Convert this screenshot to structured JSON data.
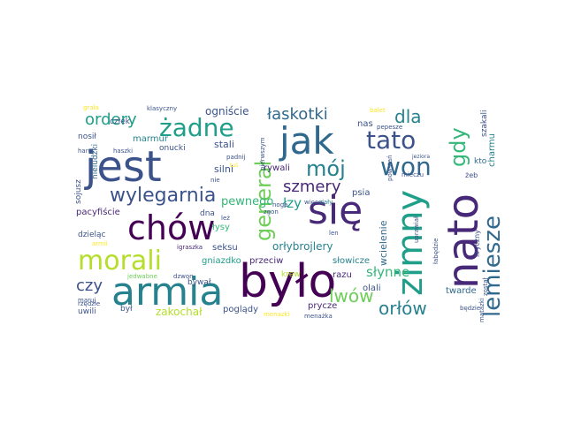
{
  "words": {
    "jest": "jest",
    "bylo": "było",
    "nato": "nato",
    "armia": "armia",
    "sie": "się",
    "jak": "jak",
    "chow": "chów",
    "zimny": "zimny",
    "tato": "tato",
    "won": "won",
    "morali": "morali",
    "lemiesze": "lemiesze",
    "zadne": "żadne",
    "general": "generał",
    "gdy": "gdy",
    "moj": "mój",
    "wylegarnia": "wylegarnia",
    "szmery": "szmery",
    "dla": "dla",
    "ordery": "ordery",
    "laskotki": "łaskotki",
    "lwow": "lwów",
    "orlow": "orłów",
    "czy": "czy",
    "slynne": "słynne",
    "lzy": "łzy",
    "pewnego": "pewnego",
    "zakochal": "zakochał",
    "ogniscie": "ogniście",
    "orlybrojlery": "orłybrojlery",
    "wcielenie": "wcielenie",
    "marmur": "marmur",
    "stali": "stali",
    "silni": "silni",
    "rywali": "rywali",
    "pogladyi": "poglądy",
    "twarde": "twarde",
    "olali": "olali",
    "razu": "razu",
    "przeciw": "przeciw",
    "slowicze": "słowicze",
    "gniazdko": "gniazdko",
    "seksu": "seksu",
    "lysy": "łysy",
    "dna": "dna",
    "pacyfiscie": "pacyfiście",
    "dzielac": "dzieląc",
    "uwili": "uwili",
    "byl": "był",
    "prycze": "prycze",
    "krew": "krew",
    "psia": "psia",
    "nas": "nas",
    "kto": "kto",
    "charmu": "charmu",
    "szakali": "szakali",
    "karni": "karni",
    "czlek": "człek",
    "onucki": "onucki",
    "nosil": "nosił",
    "sojusz": "sojusz",
    "nieludzki": "nieludzki",
    "haszki": "haszki",
    "igraszka": "igraszka",
    "klasyczny": "klasyczny",
    "balet": "balet",
    "jeziora": "jeziora",
    "liryczny": "liryczny",
    "zostal": "został",
    "bedzie": "będzie",
    "menazka": "menażka",
    "jedwabne": "jedwabne",
    "dzwon": "dzwon",
    "maruj": "maruj",
    "rzedzie": "rzędzie",
    "wiecej": "więcej",
    "calyy": "cały",
    "mieczu": "mieczu",
    "powstan": "powstań",
    "lez": "leż",
    "zgon": "zgon",
    "pierwszym": "pierwszym",
    "pepesze": "pepesze",
    "padnij": "padnij",
    "haruj": "haruj",
    "niechaj": "niechaj",
    "dziadkowie": "dziadkowie",
    "nie": "nie",
    "noga": "noga",
    "menazki": "menazki",
    "matazki": "matazki",
    "grala": "grala",
    "bywal": "bywał",
    "lebedzie": "łabędzie",
    "uprawial": "uprawiał",
    "tus": "tuś",
    "len": "len",
    "zeb": "żeb",
    "armii": "armii",
    "izanodzi": "izanodzi",
    "wybory": "wybory",
    "nie2": "nie"
  },
  "colors": {
    "dark_purple": "#440154",
    "indigo": "#482878",
    "blue": "#3b528b",
    "steel": "#31688e",
    "teal": "#26828e",
    "sea": "#1f9e89",
    "green": "#35b779",
    "lime": "#6ece58",
    "yellow_green": "#b5de2b",
    "yellow": "#fde725"
  }
}
